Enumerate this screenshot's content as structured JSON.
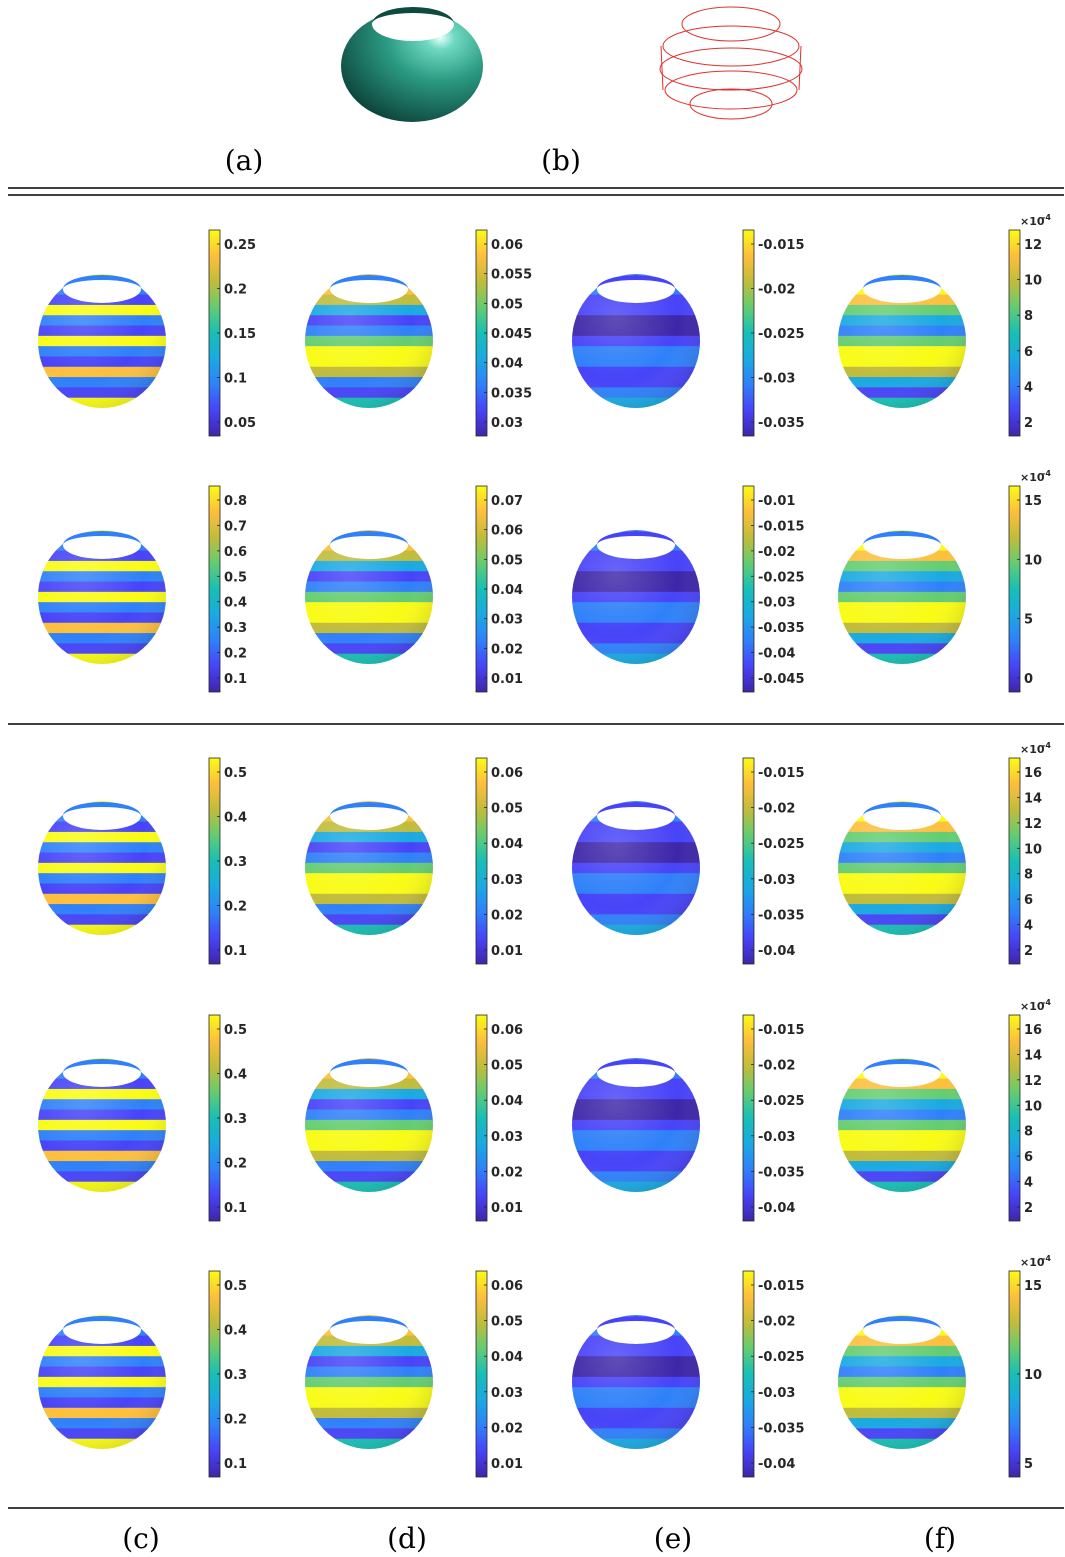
{
  "captions": {
    "top": [
      "(a)",
      "(b)"
    ],
    "bottom": [
      "(c)",
      "(d)",
      "(e)",
      "(f)"
    ]
  },
  "colormap": [
    "#3e26a8",
    "#4743f8",
    "#2f80f9",
    "#1aa9e1",
    "#18bfb5",
    "#64cc72",
    "#c1bc3b",
    "#fdbf3d",
    "#f9fb15"
  ],
  "surface_colors": {
    "teal_dark": "#0e4f45",
    "teal_light": "#3fb89a",
    "wire": "#e03030"
  },
  "panels": [
    {
      "row": 1,
      "col": "c",
      "ticks": [
        "0.25",
        "0.2",
        "0.15",
        "0.1",
        "0.05"
      ],
      "exponent": ""
    },
    {
      "row": 1,
      "col": "d",
      "ticks": [
        "0.06",
        "0.055",
        "0.05",
        "0.045",
        "0.04",
        "0.035",
        "0.03"
      ],
      "exponent": ""
    },
    {
      "row": 1,
      "col": "e",
      "ticks": [
        "-0.015",
        "-0.02",
        "-0.025",
        "-0.03",
        "-0.035"
      ],
      "exponent": ""
    },
    {
      "row": 1,
      "col": "f",
      "ticks": [
        "12",
        "10",
        "8",
        "6",
        "4",
        "2"
      ],
      "exponent": "-4"
    },
    {
      "row": 2,
      "col": "c",
      "ticks": [
        "0.8",
        "0.7",
        "0.6",
        "0.5",
        "0.4",
        "0.3",
        "0.2",
        "0.1"
      ],
      "exponent": ""
    },
    {
      "row": 2,
      "col": "d",
      "ticks": [
        "0.07",
        "0.06",
        "0.05",
        "0.04",
        "0.03",
        "0.02",
        "0.01"
      ],
      "exponent": ""
    },
    {
      "row": 2,
      "col": "e",
      "ticks": [
        "-0.01",
        "-0.015",
        "-0.02",
        "-0.025",
        "-0.03",
        "-0.035",
        "-0.04",
        "-0.045"
      ],
      "exponent": ""
    },
    {
      "row": 2,
      "col": "f",
      "ticks": [
        "15",
        "10",
        "5",
        "0"
      ],
      "exponent": "-4"
    },
    {
      "row": 3,
      "col": "c",
      "ticks": [
        "0.5",
        "0.4",
        "0.3",
        "0.2",
        "0.1"
      ],
      "exponent": ""
    },
    {
      "row": 3,
      "col": "d",
      "ticks": [
        "0.06",
        "0.05",
        "0.04",
        "0.03",
        "0.02",
        "0.01"
      ],
      "exponent": ""
    },
    {
      "row": 3,
      "col": "e",
      "ticks": [
        "-0.015",
        "-0.02",
        "-0.025",
        "-0.03",
        "-0.035",
        "-0.04"
      ],
      "exponent": ""
    },
    {
      "row": 3,
      "col": "f",
      "ticks": [
        "16",
        "14",
        "12",
        "10",
        "8",
        "6",
        "4",
        "2"
      ],
      "exponent": "-4"
    },
    {
      "row": 4,
      "col": "c",
      "ticks": [
        "0.5",
        "0.4",
        "0.3",
        "0.2",
        "0.1"
      ],
      "exponent": ""
    },
    {
      "row": 4,
      "col": "d",
      "ticks": [
        "0.06",
        "0.05",
        "0.04",
        "0.03",
        "0.02",
        "0.01"
      ],
      "exponent": ""
    },
    {
      "row": 4,
      "col": "e",
      "ticks": [
        "-0.015",
        "-0.02",
        "-0.025",
        "-0.03",
        "-0.035",
        "-0.04"
      ],
      "exponent": ""
    },
    {
      "row": 4,
      "col": "f",
      "ticks": [
        "16",
        "14",
        "12",
        "10",
        "8",
        "6",
        "4",
        "2"
      ],
      "exponent": "-4"
    },
    {
      "row": 5,
      "col": "c",
      "ticks": [
        "0.5",
        "0.4",
        "0.3",
        "0.2",
        "0.1"
      ],
      "exponent": ""
    },
    {
      "row": 5,
      "col": "d",
      "ticks": [
        "0.06",
        "0.05",
        "0.04",
        "0.03",
        "0.02",
        "0.01"
      ],
      "exponent": ""
    },
    {
      "row": 5,
      "col": "e",
      "ticks": [
        "-0.015",
        "-0.02",
        "-0.025",
        "-0.03",
        "-0.035",
        "-0.04"
      ],
      "exponent": ""
    },
    {
      "row": 5,
      "col": "f",
      "ticks": [
        "15",
        "10",
        "5"
      ],
      "exponent": "-4"
    }
  ]
}
